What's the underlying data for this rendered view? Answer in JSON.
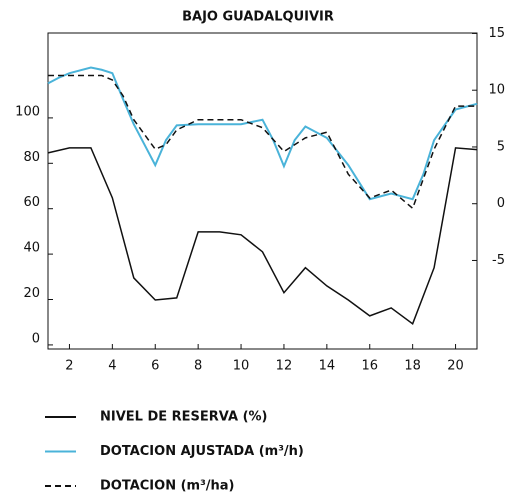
{
  "chart_data": {
    "type": "line",
    "title": "BAJO GUADALQUIVIR",
    "xlim": [
      1,
      21
    ],
    "xticks": [
      2,
      4,
      6,
      8,
      10,
      12,
      14,
      16,
      18,
      20
    ],
    "ylim": [
      -1.8,
      137.4
    ],
    "yticks": [
      0,
      20,
      40,
      60,
      80,
      100
    ],
    "y2lim": [
      -12.8,
      15.04
    ],
    "y2ticks": [
      -5,
      0,
      5,
      10,
      15
    ],
    "series": [
      {
        "name": "NIVEL DE RESERVA (%)",
        "color": "#111111",
        "dash": "solid",
        "x": [
          1,
          2,
          3,
          4,
          5,
          6,
          7,
          8,
          9,
          10,
          11,
          12,
          13,
          14,
          15,
          16,
          17,
          18,
          19,
          20,
          21
        ],
        "values": [
          84.6,
          86.8,
          86.8,
          64.8,
          29.5,
          19.8,
          20.7,
          49.8,
          49.8,
          48.5,
          41,
          23,
          34,
          26,
          19.8,
          12.8,
          16.3,
          9.3,
          34,
          86.8,
          86
        ]
      },
      {
        "name": "DOTACION AJUSTADA (m³/h)",
        "color": "#4ab3d9",
        "dash": "solid",
        "axis": "y2",
        "x": [
          1,
          1.5,
          2,
          3,
          3.5,
          4,
          4.5,
          5,
          5.5,
          6,
          6.5,
          7,
          8,
          9,
          10,
          11,
          11.5,
          12,
          12.5,
          13,
          14,
          15,
          16,
          17,
          18,
          18.5,
          19,
          20,
          21
        ],
        "values": [
          10.6,
          11.1,
          11.5,
          12,
          11.8,
          11.5,
          9.2,
          7,
          5.2,
          3.4,
          5.6,
          6.9,
          7,
          7,
          7,
          7.4,
          5.6,
          3.3,
          5.6,
          6.8,
          5.8,
          3.4,
          0.4,
          0.9,
          0.4,
          2.6,
          5.6,
          8.3,
          8.8
        ]
      },
      {
        "name": "DOTACION (m³/ha)",
        "color": "#111111",
        "dash": "dashed",
        "axis": "y2",
        "x": [
          1,
          3.5,
          4,
          4.5,
          5,
          6,
          6.5,
          7,
          8,
          10,
          11,
          12,
          13,
          14,
          15,
          16,
          17,
          18,
          19,
          20,
          21
        ],
        "values": [
          11.3,
          11.3,
          10.9,
          9.5,
          7.4,
          4.8,
          5.2,
          6.5,
          7.4,
          7.4,
          6.7,
          4.6,
          5.8,
          6.3,
          2.6,
          0.5,
          1.2,
          -0.4,
          4.8,
          8.6,
          8.6
        ]
      }
    ]
  }
}
